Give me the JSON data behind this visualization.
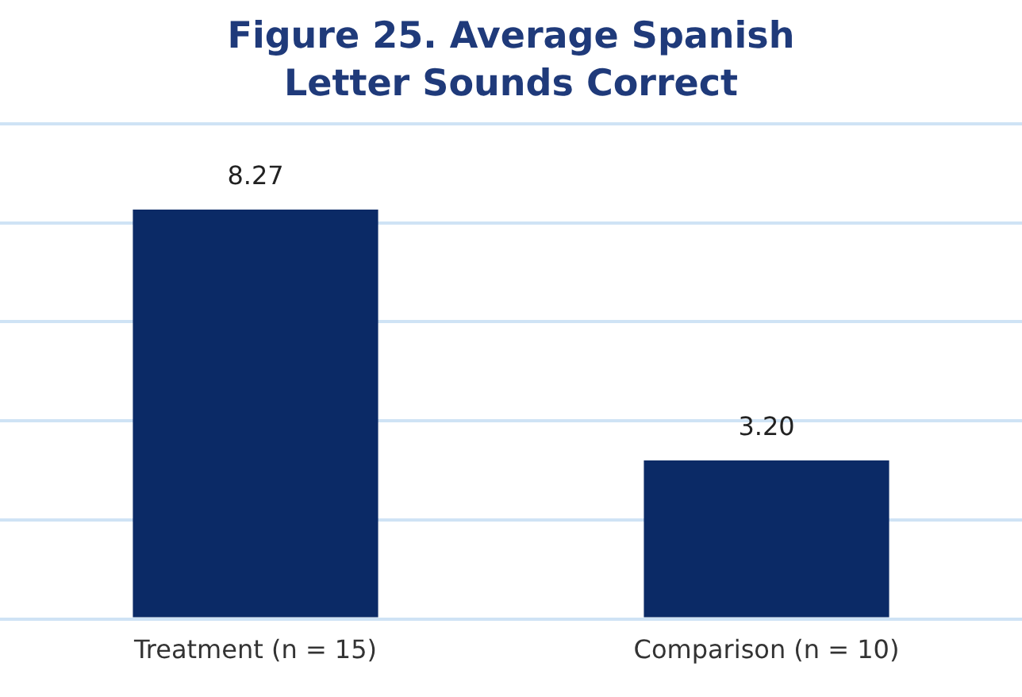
{
  "chart_data": {
    "type": "bar",
    "title": "Figure 25. Average Spanish Letter Sounds Correct",
    "categories": [
      "Treatment (n = 15)",
      "Comparison (n = 10)"
    ],
    "values": [
      8.27,
      3.2
    ],
    "color": "#0b2a66",
    "value_labels": [
      "8.27",
      "3.20"
    ],
    "ylim": [
      0,
      10
    ],
    "yticks": [
      {
        "value": 0,
        "label": null
      },
      {
        "value": 2,
        "label": null
      },
      {
        "value": 4,
        "label": null
      },
      {
        "value": 6,
        "label": null
      },
      {
        "value": 8,
        "label": null
      },
      {
        "value": 10,
        "label": null
      }
    ],
    "grid": "y",
    "tick_labels": "x",
    "legend": false
  }
}
